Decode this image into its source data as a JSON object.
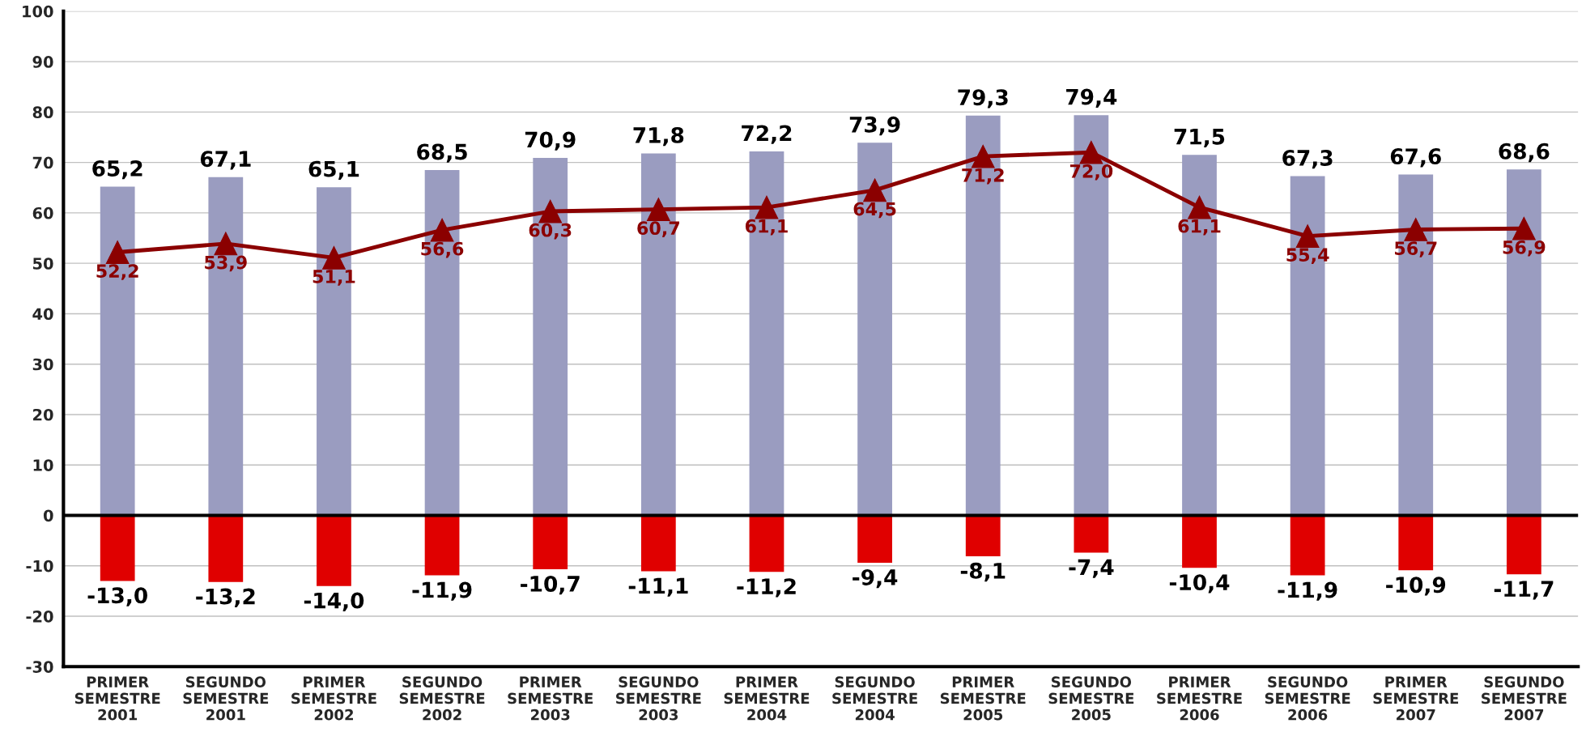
{
  "chart_data": {
    "type": "bar",
    "stacked": true,
    "categories": [
      "PRIMER\nSEMESTRE\n2001",
      "SEGUNDO\nSEMESTRE\n2001",
      "PRIMER\nSEMESTRE\n2002",
      "SEGUNDO\nSEMESTRE\n2002",
      "PRIMER\nSEMESTRE\n2003",
      "SEGUNDO\nSEMESTRE\n2003",
      "PRIMER\nSEMESTRE\n2004",
      "SEGUNDO\nSEMESTRE\n2004",
      "PRIMER\nSEMESTRE\n2005",
      "SEGUNDO\nSEMESTRE\n2005",
      "PRIMER\nSEMESTRE\n2006",
      "SEGUNDO\nSEMESTRE\n2006",
      "PRIMER\nSEMESTRE\n2007",
      "SEGUNDO\nSEMESTRE\n2007"
    ],
    "series": [
      {
        "color": "#9a9cc0",
        "values": [
          65.2,
          67.1,
          65.1,
          68.5,
          70.9,
          71.8,
          72.2,
          73.9,
          79.3,
          79.4,
          71.5,
          67.3,
          67.6,
          68.6
        ],
        "value_labels": [
          "65,2",
          "67,1",
          "65,1",
          "68,5",
          "70,9",
          "71,8",
          "72,2",
          "73,9",
          "79,3",
          "79,4",
          "71,5",
          "67,3",
          "67,6",
          "68,6"
        ]
      },
      {
        "color": "#e00000",
        "values": [
          -13.0,
          -13.2,
          -14.0,
          -11.9,
          -10.7,
          -11.1,
          -11.2,
          -9.4,
          -8.1,
          -7.4,
          -10.4,
          -11.9,
          -10.9,
          -11.7
        ],
        "value_labels": [
          "-13,0",
          "-13,2",
          "-14,0",
          "-11,9",
          "-10,7",
          "-11,1",
          "-11,2",
          "-9,4",
          "-8,1",
          "-7,4",
          "-10,4",
          "-11,9",
          "-10,9",
          "-11,7"
        ]
      },
      {
        "type": "line",
        "color": "#8b0000",
        "marker": "triangle",
        "line_style": "solid",
        "values": [
          52.2,
          53.9,
          51.1,
          56.6,
          60.3,
          60.7,
          61.1,
          64.5,
          71.2,
          72.0,
          61.1,
          55.4,
          56.7,
          56.9
        ],
        "value_labels": [
          "52,2",
          "53,9",
          "51,1",
          "56,6",
          "60,3",
          "60,7",
          "61,1",
          "64,5",
          "71,2",
          "72,0",
          "61,1",
          "55,4",
          "56,7",
          "56,9"
        ]
      }
    ],
    "ylim": [
      -30,
      100
    ],
    "yticks": [
      -30,
      -20,
      -10,
      0,
      10,
      20,
      30,
      40,
      50,
      60,
      70,
      80,
      90,
      100
    ],
    "grid": "y",
    "ref_lines": [
      {
        "axis": "y",
        "value": 0,
        "color": "#000000"
      }
    ]
  }
}
